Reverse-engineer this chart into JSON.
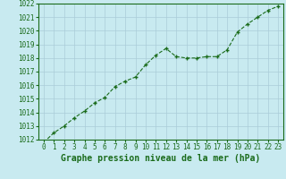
{
  "x": [
    0,
    1,
    2,
    3,
    4,
    5,
    6,
    7,
    8,
    9,
    10,
    11,
    12,
    13,
    14,
    15,
    16,
    17,
    18,
    19,
    20,
    21,
    22,
    23
  ],
  "y": [
    1011.8,
    1012.5,
    1013.0,
    1013.6,
    1014.1,
    1014.7,
    1015.1,
    1015.9,
    1016.3,
    1016.6,
    1017.5,
    1018.2,
    1018.7,
    1018.1,
    1018.0,
    1018.0,
    1018.1,
    1018.1,
    1018.6,
    1019.9,
    1020.5,
    1021.0,
    1021.5,
    1021.8
  ],
  "line_color": "#1a6b1a",
  "marker": "+",
  "marker_color": "#1a6b1a",
  "bg_color": "#c8eaf0",
  "grid_color": "#aaccd8",
  "xlabel": "Graphe pression niveau de la mer (hPa)",
  "xlabel_color": "#1a6b1a",
  "tick_color": "#1a6b1a",
  "ylim": [
    1012,
    1022
  ],
  "xlim": [
    -0.5,
    23.5
  ],
  "yticks": [
    1012,
    1013,
    1014,
    1015,
    1016,
    1017,
    1018,
    1019,
    1020,
    1021,
    1022
  ],
  "xticks": [
    0,
    1,
    2,
    3,
    4,
    5,
    6,
    7,
    8,
    9,
    10,
    11,
    12,
    13,
    14,
    15,
    16,
    17,
    18,
    19,
    20,
    21,
    22,
    23
  ],
  "xtick_labels": [
    "0",
    "1",
    "2",
    "3",
    "4",
    "5",
    "6",
    "7",
    "8",
    "9",
    "10",
    "11",
    "12",
    "13",
    "14",
    "15",
    "16",
    "17",
    "18",
    "19",
    "20",
    "21",
    "22",
    "23"
  ],
  "tick_fontsize": 5.5,
  "xlabel_fontsize": 7.0
}
